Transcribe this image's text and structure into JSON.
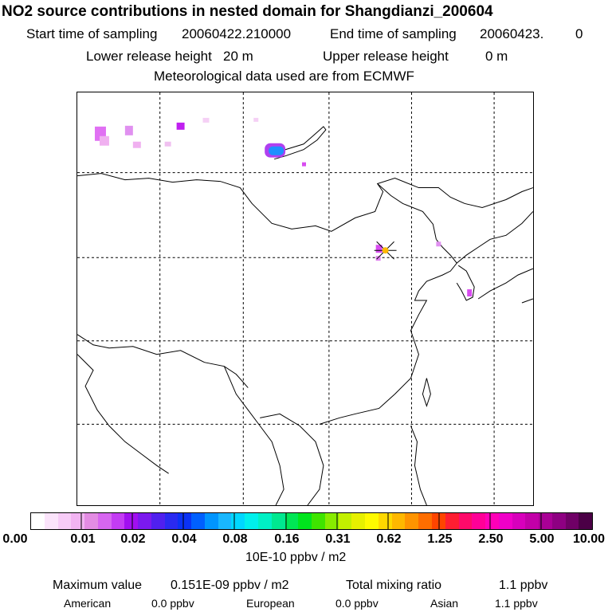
{
  "header": {
    "title": "NO2 source contributions in nested domain for Shangdianzi_200604",
    "start_label": "Start time of sampling",
    "start_value": "20060422.210000",
    "end_label": "End time of sampling",
    "end_value": "20060423.",
    "end_suffix": "0",
    "lower_label": "Lower release height",
    "lower_value": "20 m",
    "upper_label": "Upper release height",
    "upper_value": "0 m",
    "met": "Meteorological data used are from ECMWF"
  },
  "colorbar": {
    "ticks": [
      "0.00",
      "0.01",
      "0.02",
      "0.04",
      "0.08",
      "0.16",
      "0.31",
      "0.62",
      "1.25",
      "2.50",
      "5.00",
      "10.00"
    ],
    "unit": "10E-10 ppbv / m2",
    "colors": [
      "#ffffff",
      "#fbe4fb",
      "#f7ccf7",
      "#f2b4f2",
      "#e38ce3",
      "#d766f0",
      "#c33cf3",
      "#a10ff0",
      "#7b19ee",
      "#5020ee",
      "#2a2af0",
      "#0b32f5",
      "#0060ff",
      "#0095ff",
      "#19b7ff",
      "#00d7ff",
      "#00f0ec",
      "#00f0c5",
      "#00e890",
      "#00e655",
      "#00e51d",
      "#3fe500",
      "#88ec00",
      "#c3f000",
      "#e7f000",
      "#fffa00",
      "#ffd900",
      "#ffb800",
      "#ff9400",
      "#ff6e00",
      "#ff4500",
      "#ff1e32",
      "#ff0a6a",
      "#ff0097",
      "#ff00b8",
      "#f000c8",
      "#d800bc",
      "#c200a8",
      "#a90096",
      "#8e0082",
      "#6f0066",
      "#4b0046"
    ]
  },
  "footer": {
    "max_label": "Maximum value",
    "max_value": "0.151E-09 ppbv / m2",
    "total_label": "Total mixing ratio",
    "total_value": "1.1 ppbv",
    "american_label": "American",
    "american_value": "0.0 ppbv",
    "european_label": "European",
    "european_value": "0.0 ppbv",
    "asian_label": "Asian",
    "asian_value": "1.1 ppbv"
  },
  "map": {
    "station_color": "#ffb800",
    "plume_color": "#d84cf0",
    "peak_color": "#1e90ff"
  }
}
